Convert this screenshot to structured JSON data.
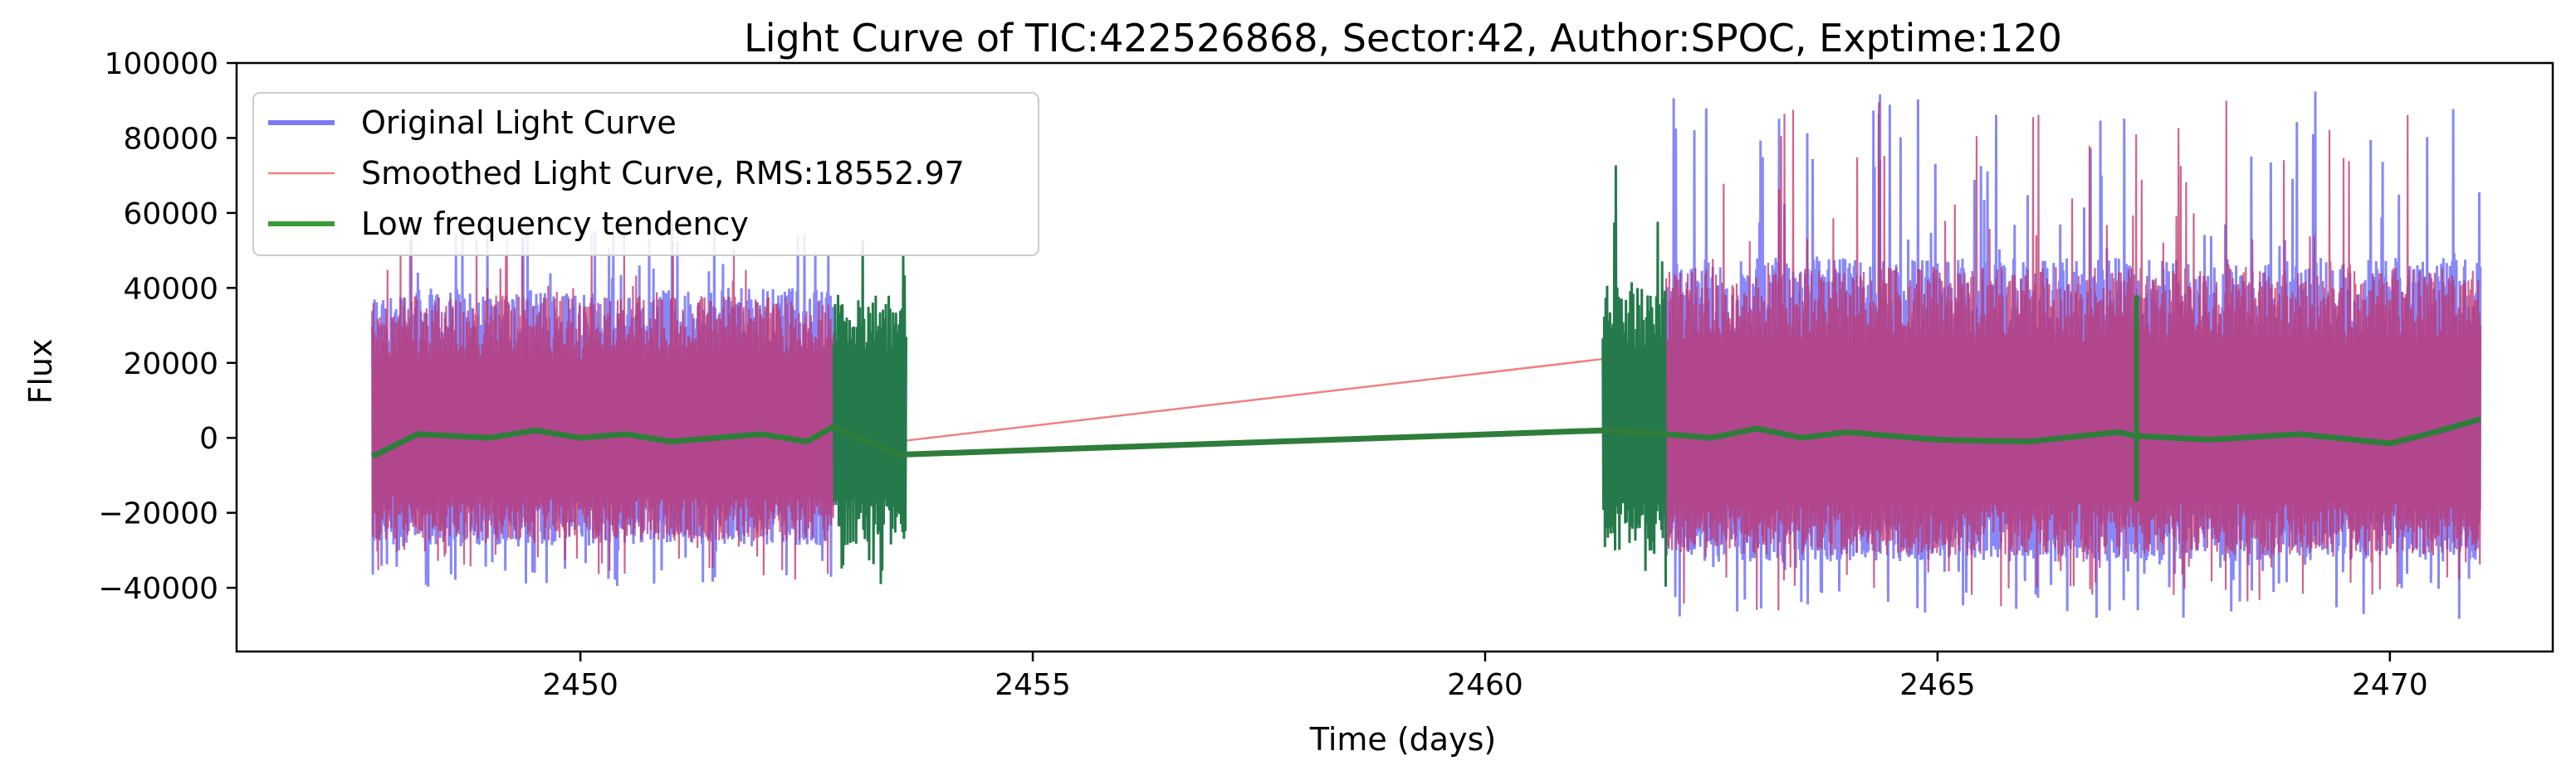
{
  "chart_data": {
    "type": "line",
    "title": "Light Curve of TIC:422526868, Sector:42, Author:SPOC, Exptime:120",
    "xlabel": "Time (days)",
    "ylabel": "Flux",
    "xlim": [
      2446.2,
      2471.8
    ],
    "ylim": [
      -57000,
      100000
    ],
    "xticks": [
      2450,
      2455,
      2460,
      2465,
      2470
    ],
    "yticks": [
      -40000,
      -20000,
      0,
      20000,
      40000,
      60000,
      80000,
      100000
    ],
    "grid": false,
    "legend_position": "upper-left",
    "segments": [
      {
        "start": 2447.7,
        "end": 2452.8,
        "low": -29000,
        "high": 40000,
        "spike_low": -40000,
        "spike_high": 58000
      },
      {
        "start": 2462.0,
        "end": 2471.0,
        "low": -33000,
        "high": 48000,
        "spike_low": -49000,
        "spike_high": 93000
      }
    ],
    "series": [
      {
        "name": "Original Light Curve",
        "color": "#7b7bf7",
        "style": "dense band",
        "note_range": "oscillates roughly -30000 to 45000 within each observing segment"
      },
      {
        "name": "Smoothed Light Curve, RMS:18552.97",
        "color": "#f08080",
        "style": "dense band overlaid",
        "gap_line": {
          "x": [
            2452.8,
            2462.0
          ],
          "y": [
            -3000,
            23000
          ]
        }
      },
      {
        "name": "Low frequency tendency",
        "color": "#3a9a3a",
        "style": "thick line",
        "x": [
          2447.7,
          2448.2,
          2449.0,
          2449.5,
          2450.0,
          2450.5,
          2451.0,
          2451.5,
          2452.0,
          2452.5,
          2452.8,
          2453.5,
          2461.3,
          2462.0,
          2462.5,
          2463.0,
          2463.5,
          2464.0,
          2465.0,
          2466.0,
          2467.0,
          2467.2,
          2468.0,
          2469.0,
          2470.0,
          2470.5,
          2471.0
        ],
        "y": [
          -5000,
          1000,
          0,
          2000,
          0,
          1000,
          -1000,
          0,
          1000,
          -1000,
          3000,
          -4500,
          2000,
          1000,
          0,
          2500,
          0,
          1500,
          -500,
          -1000,
          1500,
          500,
          -500,
          1000,
          -1500,
          1500,
          5000
        ],
        "bursts": [
          {
            "start": 2452.8,
            "end": 2453.6,
            "low": -41000,
            "high": 71000
          },
          {
            "start": 2461.3,
            "end": 2462.0,
            "low": -45000,
            "high": 79000
          }
        ],
        "spike": {
          "x": 2467.2,
          "low": -17000,
          "high": 38000
        }
      }
    ]
  }
}
